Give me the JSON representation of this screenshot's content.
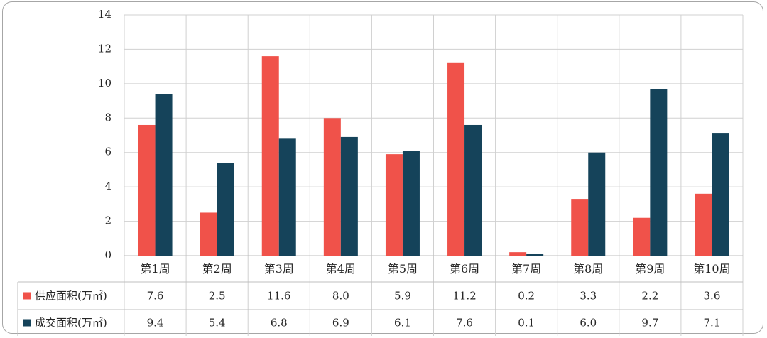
{
  "chart_data": {
    "type": "bar",
    "categories": [
      "第1周",
      "第2周",
      "第3周",
      "第4周",
      "第5周",
      "第6周",
      "第7周",
      "第8周",
      "第9周",
      "第10周"
    ],
    "series": [
      {
        "name": "供应面积(万㎡)",
        "color": "#f0524a",
        "values": [
          7.6,
          2.5,
          11.6,
          8.0,
          5.9,
          11.2,
          0.2,
          3.3,
          2.2,
          3.6
        ],
        "labels": [
          "7.6",
          "2.5",
          "11.6",
          "8.0",
          "5.9",
          "11.2",
          "0.2",
          "3.3",
          "2.2",
          "3.6"
        ]
      },
      {
        "name": "成交面积(万㎡)",
        "color": "#15435a",
        "values": [
          9.4,
          5.4,
          6.8,
          6.9,
          6.1,
          7.6,
          0.1,
          6.0,
          9.7,
          7.1
        ],
        "labels": [
          "9.4",
          "5.4",
          "6.8",
          "6.9",
          "6.1",
          "7.6",
          "0.1",
          "6.0",
          "9.7",
          "7.1"
        ]
      }
    ],
    "ylim": [
      0,
      14
    ],
    "yticks": [
      "0",
      "2",
      "4",
      "6",
      "8",
      "10",
      "12",
      "14"
    ],
    "grid": true,
    "legend": "data-table",
    "data_table": true
  }
}
